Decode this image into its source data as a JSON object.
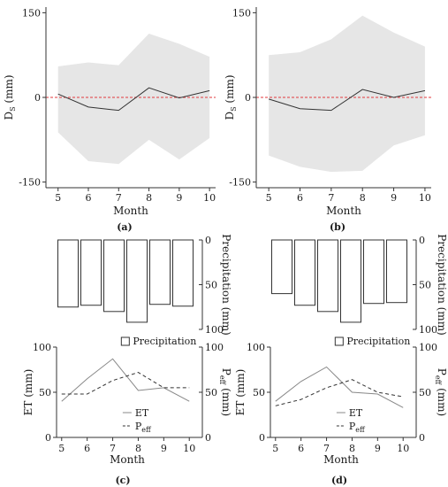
{
  "chart_data": [
    {
      "id": "a",
      "type": "area",
      "caption": "(a)",
      "xlabel": "Month",
      "ylabel": "D",
      "ylabel_sub": "S",
      "ylabel_unit": " (mm)",
      "x": [
        5,
        6,
        7,
        8,
        9,
        10
      ],
      "xlim": [
        4.6,
        10.2
      ],
      "ylim": [
        -160,
        160
      ],
      "yticks": [
        -150,
        0,
        150
      ],
      "band_upper": [
        55,
        62,
        57,
        113,
        95,
        72
      ],
      "band_lower": [
        -62,
        -113,
        -118,
        -75,
        -110,
        -72
      ],
      "series": [
        {
          "values": [
            6,
            -17,
            -23,
            17,
            -1,
            12
          ]
        }
      ],
      "ref_line": 0
    },
    {
      "id": "b",
      "type": "area",
      "caption": "(b)",
      "xlabel": "Month",
      "ylabel": "D",
      "ylabel_sub": "S",
      "ylabel_unit": " (mm)",
      "x": [
        5,
        6,
        7,
        8,
        9,
        10
      ],
      "xlim": [
        4.6,
        10.2
      ],
      "ylim": [
        -160,
        160
      ],
      "yticks": [
        -150,
        0,
        150
      ],
      "band_upper": [
        75,
        80,
        103,
        145,
        115,
        90
      ],
      "band_lower": [
        -103,
        -123,
        -132,
        -130,
        -85,
        -67
      ],
      "series": [
        {
          "values": [
            -3,
            -20,
            -23,
            14,
            0,
            12
          ]
        }
      ],
      "ref_line": 0
    },
    {
      "id": "c",
      "type": "bar+line",
      "caption": "(c)",
      "precip": {
        "label": "Precipitation (mm)",
        "values": [
          75,
          73,
          80,
          92,
          72,
          74
        ],
        "ylim": [
          0,
          100
        ],
        "yticks": [
          0,
          50,
          100
        ],
        "inverted": true,
        "legend": "Precipitation"
      },
      "lines": {
        "xlabel": "Month",
        "ylabel_left": "ET (mm)",
        "ylabel_right_main": "P",
        "ylabel_right_sub": "eff",
        "ylabel_right_unit": " (mm)",
        "x": [
          5,
          6,
          7,
          8,
          9,
          10
        ],
        "xlim": [
          4.8,
          10.2
        ],
        "ylim": [
          0,
          100
        ],
        "yticks": [
          0,
          50,
          100
        ],
        "series": [
          {
            "name": "ET",
            "style": "solid",
            "values": [
              40,
              65,
              87,
              52,
              55,
              40
            ]
          },
          {
            "name": "eff",
            "name_prefix": "P",
            "style": "dashed",
            "values": [
              48,
              48,
              63,
              72,
              55,
              55
            ]
          }
        ]
      }
    },
    {
      "id": "d",
      "type": "bar+line",
      "caption": "(d)",
      "precip": {
        "label": "Precipitation (mm)",
        "values": [
          60,
          73,
          80,
          92,
          71,
          70
        ],
        "ylim": [
          0,
          100
        ],
        "yticks": [
          0,
          50,
          100
        ],
        "inverted": true,
        "legend": "Precipitation"
      },
      "lines": {
        "xlabel": "Month",
        "ylabel_left": "ET (mm)",
        "ylabel_right_main": "P",
        "ylabel_right_sub": "eff",
        "ylabel_right_unit": " (mm)",
        "x": [
          5,
          6,
          7,
          8,
          9,
          10
        ],
        "xlim": [
          4.8,
          10.2
        ],
        "ylim": [
          0,
          100
        ],
        "yticks": [
          0,
          50,
          100
        ],
        "series": [
          {
            "name": "ET",
            "style": "solid",
            "values": [
              40,
              62,
              78,
              50,
              48,
              33
            ]
          },
          {
            "name": "eff",
            "name_prefix": "P",
            "style": "dashed",
            "values": [
              35,
              42,
              55,
              64,
              50,
              45
            ]
          }
        ]
      }
    }
  ]
}
